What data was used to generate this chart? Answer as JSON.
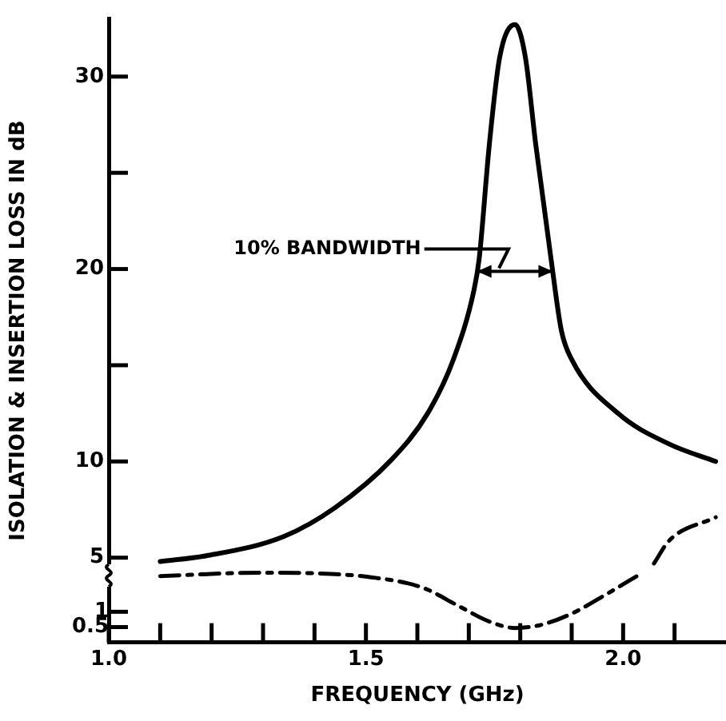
{
  "chart_data": {
    "type": "line",
    "xlabel": "FREQUENCY (GHz)",
    "ylabel": "ISOLATION & INSERTION LOSS IN dB",
    "xlim": [
      1.0,
      2.2
    ],
    "xticks": [
      {
        "value": 1.0,
        "label": "1.0"
      },
      {
        "value": 1.1,
        "label": null
      },
      {
        "value": 1.2,
        "label": null
      },
      {
        "value": 1.3,
        "label": null
      },
      {
        "value": 1.4,
        "label": null
      },
      1.5,
      {
        "value": 1.6,
        "label": null
      },
      {
        "value": 1.7,
        "label": null
      },
      {
        "value": 1.8,
        "label": null
      },
      {
        "value": 1.9,
        "label": null
      },
      {
        "value": 2.0,
        "label": "2.0"
      },
      {
        "value": 2.1,
        "label": null
      }
    ],
    "ylim": [
      0.6,
      33
    ],
    "yticks": [
      5,
      10,
      {
        "value": 15,
        "label": null
      },
      20,
      {
        "value": 25,
        "label": null
      },
      30
    ],
    "y2lim": [
      0,
      20.4
    ],
    "y2ticks": [
      0.5,
      1
    ],
    "series": [
      {
        "color": "#000000",
        "line_style": "solid",
        "x": [
          1.1,
          1.19,
          1.34,
          1.44,
          1.55,
          1.62,
          1.67,
          1.71,
          1.72,
          1.74,
          1.76,
          1.79,
          1.81,
          1.83,
          1.86,
          1.88,
          1.9,
          1.99,
          2.09,
          2.18
        ],
        "values": [
          4.8,
          5.1,
          6.1,
          7.6,
          10.1,
          12.5,
          15.3,
          18.9,
          20.5,
          26.5,
          31.0,
          32.7,
          31.0,
          26.5,
          20.5,
          16.8,
          15.3,
          12.5,
          10.9,
          10.0
        ]
      },
      {
        "color": "#000000",
        "line_style": "dashdot",
        "axis": "y2",
        "x": [
          1.1,
          1.3,
          1.4,
          1.51,
          1.61,
          1.68,
          1.74,
          1.79,
          1.84,
          1.9,
          1.97,
          2.03
        ],
        "values": [
          2.17,
          2.28,
          2.26,
          2.13,
          1.79,
          1.19,
          0.68,
          0.47,
          0.57,
          0.94,
          1.6,
          2.2
        ]
      },
      {
        "color": "#000000",
        "line_style": "dashdot",
        "x": [
          2.06,
          2.09,
          2.18
        ],
        "values": [
          4.7,
          5.9,
          7.1
        ]
      }
    ],
    "annotations": [
      "10% BANDWIDTH"
    ],
    "grid": false,
    "legend": false,
    "marker": "none"
  }
}
